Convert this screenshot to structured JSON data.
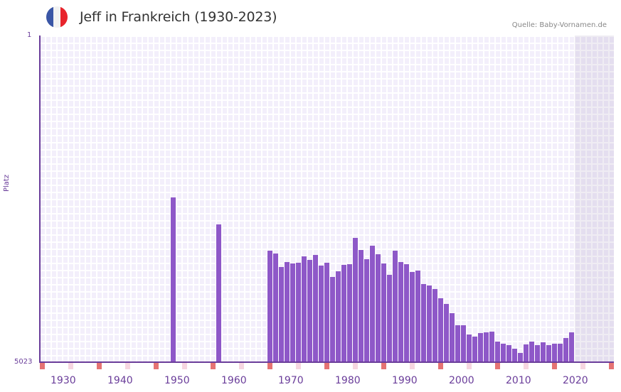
{
  "header": {
    "title": "Jeff in Frankreich (1930-2023)",
    "source": "Quelle: Baby-Vornamen.de",
    "flag_colors": [
      "#3a56a6",
      "#f2f2f2",
      "#e8242c"
    ]
  },
  "axis": {
    "y_top": "1",
    "y_bottom": "5023",
    "y_title": "Platz",
    "x_ticks": [
      "1930",
      "1940",
      "1950",
      "1960",
      "1970",
      "1980",
      "1990",
      "2000",
      "2010",
      "2020"
    ]
  },
  "colors": {
    "bar": "#8e58c8",
    "axis": "#6a3d9a",
    "marker_strong": "#e57373",
    "marker_light": "#f6d6e0"
  },
  "chart_data": {
    "type": "bar",
    "title": "Jeff in Frankreich (1930-2023)",
    "xlabel": "",
    "ylabel": "Platz",
    "ylim": [
      5023,
      1
    ],
    "note": "Bar height represents popularity rank (taller = better rank); values in approximate bar height px out of 460",
    "categories": [
      1951,
      1959,
      1968,
      1969,
      1970,
      1971,
      1972,
      1973,
      1974,
      1975,
      1976,
      1977,
      1978,
      1979,
      1980,
      1981,
      1982,
      1983,
      1984,
      1985,
      1986,
      1987,
      1988,
      1989,
      1990,
      1991,
      1992,
      1993,
      1994,
      1995,
      1996,
      1997,
      1998,
      1999,
      2000,
      2001,
      2002,
      2003,
      2004,
      2005,
      2006,
      2007,
      2008,
      2009,
      2010,
      2011,
      2012,
      2013,
      2014,
      2015,
      2016,
      2017,
      2018,
      2019,
      2020,
      2021
    ],
    "values": [
      232,
      194,
      157,
      153,
      134,
      141,
      139,
      140,
      149,
      144,
      151,
      136,
      140,
      120,
      128,
      137,
      138,
      175,
      158,
      145,
      164,
      152,
      139,
      123,
      157,
      141,
      138,
      127,
      129,
      110,
      108,
      103,
      90,
      82,
      69,
      52,
      52,
      39,
      36,
      41,
      42,
      43,
      29,
      26,
      24,
      19,
      13,
      25,
      29,
      24,
      28,
      24,
      26,
      26,
      34,
      42
    ]
  }
}
